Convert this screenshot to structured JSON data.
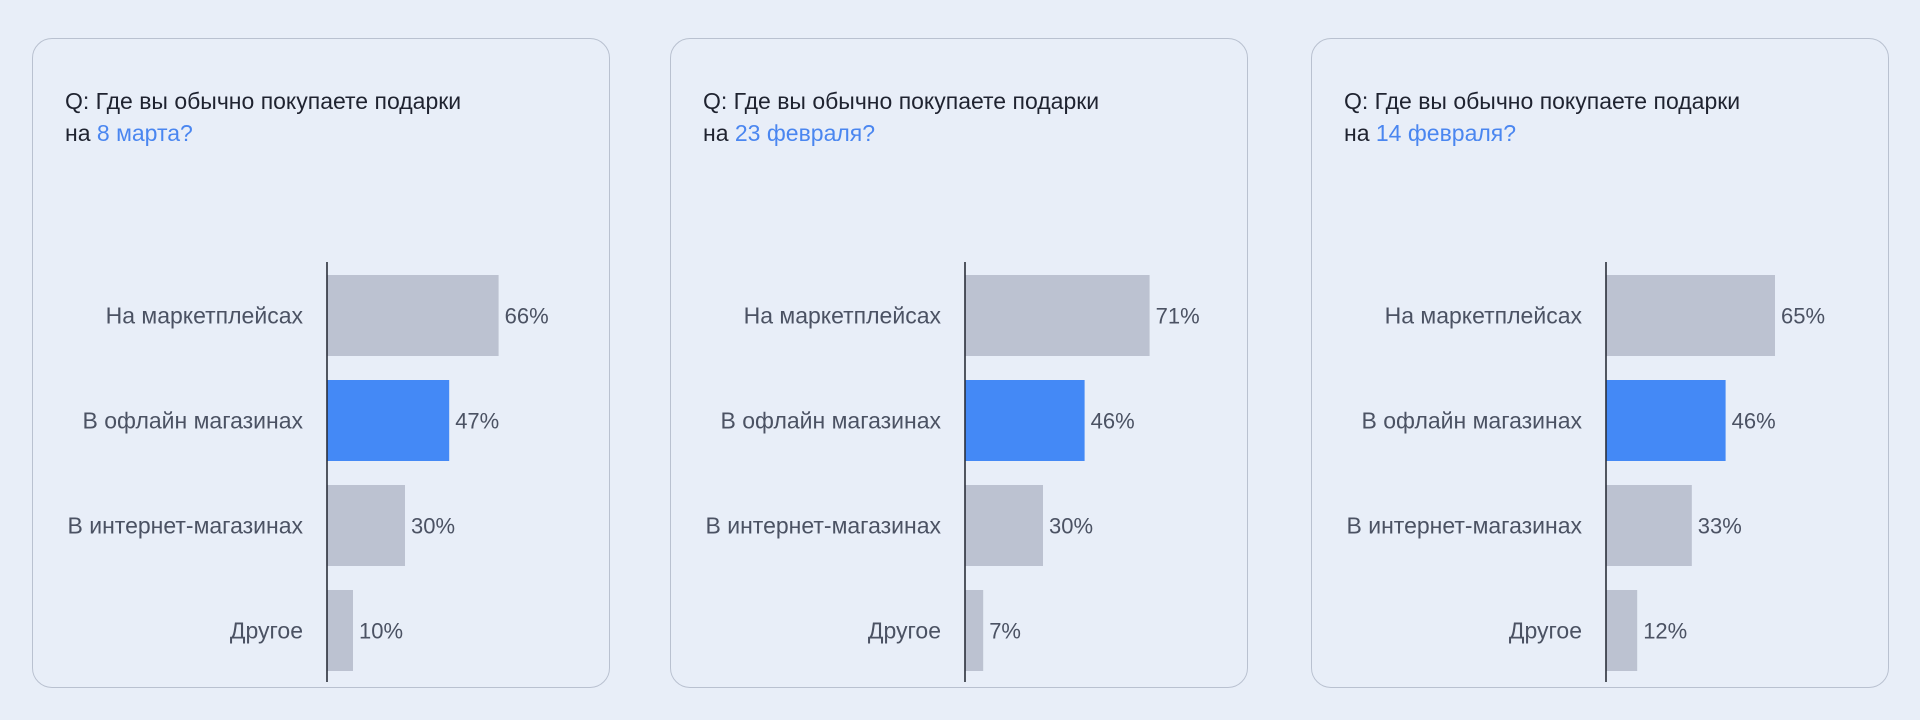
{
  "colors": {
    "background": "#e8eef8",
    "bar_default": "#bcc2d1",
    "bar_highlight": "#4489f6",
    "accent_text": "#4a86f0",
    "axis": "#2b2f3a"
  },
  "cards": [
    {
      "question_line1": "Q: Где вы обычно покупаете подарки",
      "question_prefix": "на ",
      "question_accent": "8 марта?"
    },
    {
      "question_line1": "Q: Где вы обычно покупаете подарки",
      "question_prefix": "на ",
      "question_accent": "23 февраля?"
    },
    {
      "question_line1": "Q: Где вы обычно покупаете подарки",
      "question_prefix": "на ",
      "question_accent": "14 февраля?"
    }
  ],
  "chart_data": [
    {
      "type": "bar",
      "orientation": "horizontal",
      "categories": [
        "На маркетплейсах",
        "В офлайн магазинах",
        "В интернет-магазинах",
        "Другое"
      ],
      "values": [
        66,
        47,
        30,
        10
      ],
      "value_labels": [
        "66%",
        "47%",
        "30%",
        "10%"
      ],
      "highlight_index": 1,
      "xlim": [
        0,
        100
      ],
      "grid": false
    },
    {
      "type": "bar",
      "orientation": "horizontal",
      "categories": [
        "На маркетплейсах",
        "В офлайн магазинах",
        "В интернет-магазинах",
        "Другое"
      ],
      "values": [
        71,
        46,
        30,
        7
      ],
      "value_labels": [
        "71%",
        "46%",
        "30%",
        "7%"
      ],
      "highlight_index": 1,
      "xlim": [
        0,
        100
      ],
      "grid": false
    },
    {
      "type": "bar",
      "orientation": "horizontal",
      "categories": [
        "На маркетплейсах",
        "В офлайн магазинах",
        "В интернет-магазинах",
        "Другое"
      ],
      "values": [
        65,
        46,
        33,
        12
      ],
      "value_labels": [
        "65%",
        "46%",
        "33%",
        "12%"
      ],
      "highlight_index": 1,
      "xlim": [
        0,
        100
      ],
      "grid": false
    }
  ]
}
